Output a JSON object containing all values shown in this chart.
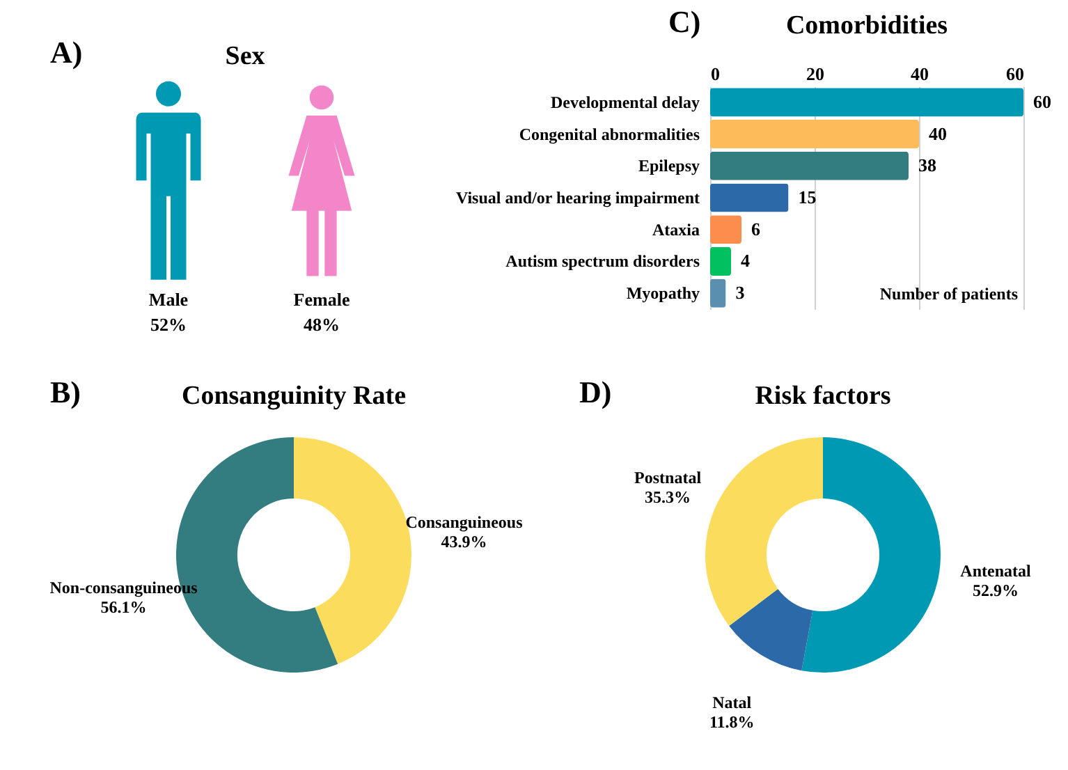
{
  "chart_data": [
    {
      "type": "other",
      "title": "Sex",
      "annotations": [
        "A)"
      ],
      "categories": [
        "Male",
        "Female"
      ],
      "values": [
        52,
        48
      ],
      "value_labels": [
        "52%",
        "48%"
      ],
      "colors": [
        "#0099b4",
        "#f386c8"
      ]
    },
    {
      "type": "bar",
      "orientation": "horizontal",
      "title": "Comorbidities",
      "annotations": [
        "C)"
      ],
      "xlabel": "Number of patients",
      "categories": [
        "Developmental delay",
        "Congenital abnormalities",
        "Epilepsy",
        "Visual and/or hearing impairment",
        "Ataxia",
        "Autism spectrum disorders",
        "Myopathy"
      ],
      "values": [
        60,
        40,
        38,
        15,
        6,
        4,
        3
      ],
      "colors": [
        "#0099b4",
        "#fdbb5a",
        "#337c80",
        "#2b69a8",
        "#fd8d4d",
        "#00c060",
        "#5a8fb0"
      ],
      "xlim": [
        0,
        60
      ],
      "xticks": [
        0,
        20,
        40,
        60
      ],
      "grid": "x",
      "data_labels": true
    },
    {
      "type": "donut",
      "title": "Consanguinity Rate",
      "annotations": [
        "B)"
      ],
      "categories": [
        "Consanguineous",
        "Non-consanguineous"
      ],
      "values": [
        43.9,
        56.1
      ],
      "value_labels": [
        "43.9%",
        "56.1%"
      ],
      "colors": [
        "#fcdc5c",
        "#337c80"
      ]
    },
    {
      "type": "donut",
      "title": "Risk factors",
      "annotations": [
        "D)"
      ],
      "categories": [
        "Antenatal",
        "Natal",
        "Postnatal"
      ],
      "values": [
        52.9,
        11.8,
        35.3
      ],
      "value_labels": [
        "52.9%",
        "11.8%",
        "35.3%"
      ],
      "colors": [
        "#0099b4",
        "#2b69a8",
        "#fcdc5c"
      ]
    }
  ]
}
